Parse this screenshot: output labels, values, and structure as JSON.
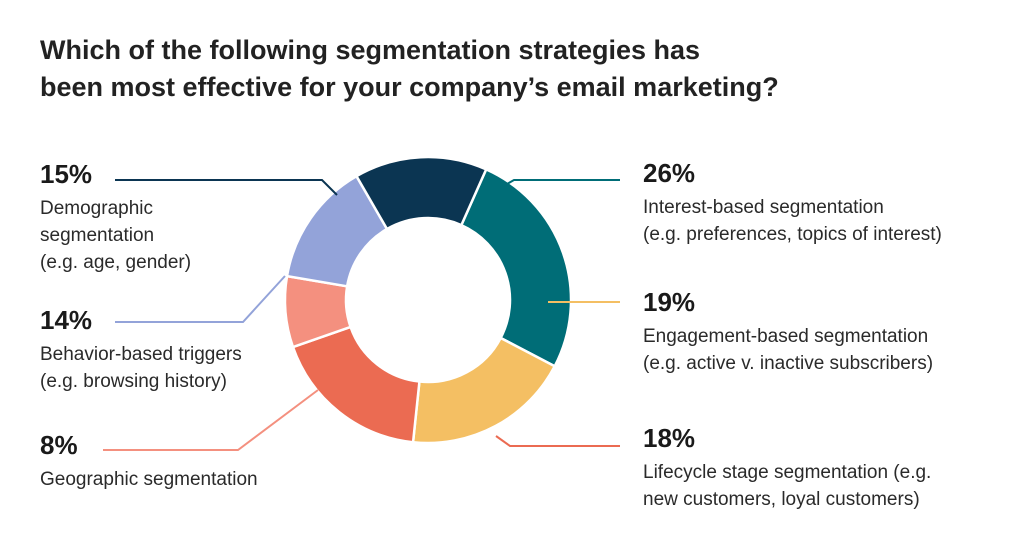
{
  "title_lines": [
    "Which of the following segmentation strategies has",
    "been most effective for your company’s email marketing?"
  ],
  "chart_data": {
    "type": "pie",
    "donut": true,
    "slices": [
      {
        "label": "Interest-based segmentation",
        "value": 26,
        "value_text": "26%",
        "description_lines": [
          "Interest-based segmentation",
          "(e.g. preferences, topics of interest)"
        ],
        "color": "#006d77"
      },
      {
        "label": "Engagement-based segmentation",
        "value": 19,
        "value_text": "19%",
        "description_lines": [
          "Engagement-based segmentation",
          "(e.g. active v. inactive subscribers)"
        ],
        "color": "#f4bf63"
      },
      {
        "label": "Lifecycle stage segmentation",
        "value": 18,
        "value_text": "18%",
        "description_lines": [
          "Lifecycle stage segmentation (e.g.",
          "new customers, loyal customers)"
        ],
        "color": "#eb6b52"
      },
      {
        "label": "Geographic segmentation",
        "value": 8,
        "value_text": "8%",
        "description_lines": [
          "Geographic segmentation"
        ],
        "color": "#f4907f"
      },
      {
        "label": "Behavior-based triggers",
        "value": 14,
        "value_text": "14%",
        "description_lines": [
          "Behavior-based triggers",
          "(e.g. browsing history)"
        ],
        "color": "#93a3d9"
      },
      {
        "label": "Demographic segmentation",
        "value": 15,
        "value_text": "15%",
        "description_lines": [
          "Demographic",
          "segmentation",
          "(e.g. age, gender)"
        ],
        "color": "#0b3552"
      }
    ]
  }
}
